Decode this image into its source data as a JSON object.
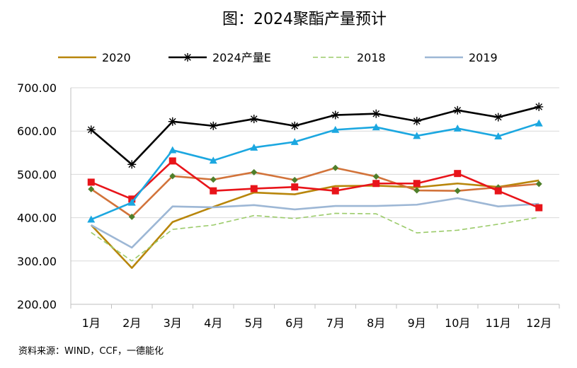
{
  "chart_data": {
    "type": "line",
    "title": "图：2024聚酯产量预计",
    "source": "资料来源：WIND，CCF，一德能化",
    "categories": [
      "1月",
      "2月",
      "3月",
      "4月",
      "5月",
      "6月",
      "7月",
      "8月",
      "9月",
      "10月",
      "11月",
      "12月"
    ],
    "ylim": [
      200,
      700
    ],
    "yticks": [
      200,
      300,
      400,
      500,
      600,
      700
    ],
    "ytick_labels": [
      "200.00",
      "300.00",
      "400.00",
      "500.00",
      "600.00",
      "700.00"
    ],
    "grid": true,
    "legend_position": "top",
    "series": [
      {
        "name": "2020",
        "color": "#B8860B",
        "marker": "none",
        "style": "solid",
        "legend": true,
        "values": [
          383,
          284,
          390,
          425,
          458,
          454,
          473,
          474,
          470,
          479,
          471,
          486
        ]
      },
      {
        "name": "2024产量E",
        "color": "#000000",
        "marker": "asterisk",
        "style": "solid",
        "legend": true,
        "values": [
          603,
          523,
          622,
          612,
          628,
          612,
          637,
          640,
          623,
          648,
          632,
          656
        ]
      },
      {
        "name": "2018",
        "color": "#9BCB6A",
        "marker": "none",
        "style": "dashed",
        "legend": true,
        "values": [
          366,
          300,
          373,
          383,
          405,
          398,
          410,
          409,
          365,
          371,
          385,
          401
        ]
      },
      {
        "name": "2019",
        "color": "#9DB7D5",
        "marker": "none",
        "style": "solid",
        "legend": true,
        "values": [
          383,
          331,
          426,
          424,
          429,
          419,
          427,
          427,
          430,
          445,
          426,
          432
        ]
      },
      {
        "name": "series-orange",
        "color": "#D2733A",
        "marker": "diamond",
        "markerColor": "#4F7F2A",
        "style": "solid",
        "legend": false,
        "values": [
          466,
          402,
          496,
          488,
          505,
          487,
          515,
          495,
          463,
          462,
          470,
          478
        ]
      },
      {
        "name": "series-red",
        "color": "#E8141A",
        "marker": "square",
        "style": "solid",
        "legend": false,
        "values": [
          482,
          443,
          531,
          462,
          467,
          471,
          462,
          479,
          479,
          502,
          462,
          423
        ]
      },
      {
        "name": "series-cyan",
        "color": "#1BA7E0",
        "marker": "triangle",
        "style": "solid",
        "legend": false,
        "values": [
          396,
          435,
          556,
          532,
          562,
          575,
          603,
          609,
          589,
          606,
          588,
          618
        ]
      }
    ]
  }
}
